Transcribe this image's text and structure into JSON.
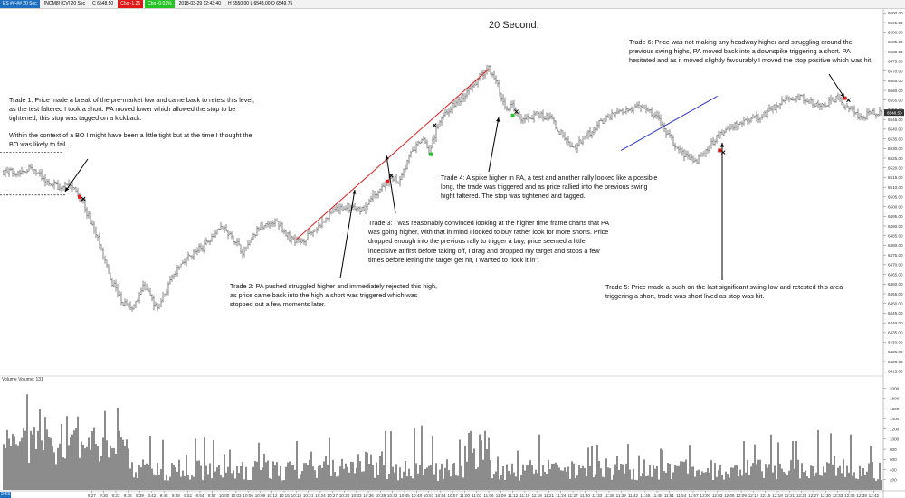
{
  "topbar": {
    "instrument": "ES ##-## 20 Sec",
    "bar_type": "[NQM8] [CV] 20 Sec",
    "price": "C 6548.50",
    "stats": "H 6550.00  L 6548.00  O 6549.75",
    "chg": "Chg -1.25",
    "chg_pct": "Chg -0.02%",
    "datetime": "2018-03-29 12:43:40"
  },
  "title": "20 Second.",
  "volume_label": "Volume  Volume: 131",
  "time_badge": "3-29",
  "annotations": {
    "trade1": {
      "p1": "Trade 1:  Price made a break of the pre-market low and came back to retest this level, as the test faltered I took a short.  PA moved lower which allowed the stop to be tightened, this stop was tagged on a kickback.",
      "p2": "Within the context of a BO I might have been a little tight but at the time I thought the BO was likely to fail."
    },
    "trade2": "Trade 2:  PA pushed struggled higher and immediately rejected this high, as price came back into the high a short was triggered which was stopped out a few moments later.",
    "trade3": "Trade 3:  I was reasonably convinced looking at the higher time frame charts that PA was going higher, with that in mind I looked to buy rather look for more shorts. Price dropped enough into the previous rally to trigger a buy, price seemed a little indecisive at first before taking off, I drag and dropped my target and stops a few times before letting the target get hit, I wanted to \"lock it in\".",
    "trade4": "Trade 4:  A spike higher in PA, a test and another rally looked like a possible long, the trade was triggered and as price rallied into the previous swing hight faltered.  The stop was tightened and tagged.",
    "trade5": "Trade 5:  Price made a push on the last significant swing low and retested this area triggering a short, trade was short lived as stop was hit.",
    "trade6": "Trade 6:  Price was not making any headway higher and struggling around the previous swing highs, PA moved back into a downspike triggering a short.  PA hesitated and as it moved slightly favourably I moved the stop positive which was hit."
  },
  "chart_data": {
    "type": "bar",
    "subtype": "ohlc",
    "price_axis": {
      "ticks": [
        "6600.00",
        "6595.00",
        "6590.00",
        "6585.00",
        "6580.00",
        "6575.00",
        "6570.00",
        "6565.00",
        "6560.00",
        "6555.00",
        "6550.00",
        "6545.00",
        "6540.00",
        "6535.00",
        "6530.00",
        "6525.00",
        "6520.00",
        "6515.00",
        "6510.00",
        "6505.00",
        "6500.00",
        "6495.00",
        "6490.00",
        "6485.00",
        "6480.00",
        "6475.00",
        "6470.00",
        "6465.00",
        "6460.00",
        "6455.00",
        "6450.00",
        "6445.00",
        "6440.00",
        "6435.00",
        "6430.00",
        "6425.00",
        "6420.00",
        "6415.00"
      ],
      "range": [
        6413,
        6602
      ],
      "last_price": "6548.50"
    },
    "volume_axis": {
      "ticks": [
        "2000",
        "1800",
        "1600",
        "1400",
        "1200",
        "1000",
        "800",
        "600",
        "400",
        "200"
      ],
      "range": [
        0,
        2100
      ]
    },
    "time_ticks": [
      "9:27",
      "9:30",
      "9:33",
      "9:36",
      "9:39",
      "9:42",
      "9:45",
      "9:48",
      "9:51",
      "9:54",
      "9:57",
      "10:00",
      "10:03",
      "10:06",
      "10:09",
      "10:12",
      "10:15",
      "10:18",
      "10:21",
      "10:24",
      "10:27",
      "10:30",
      "10:33",
      "10:36",
      "10:39",
      "10:42",
      "10:45",
      "10:48",
      "10:51",
      "10:54",
      "10:57",
      "11:00",
      "11:03",
      "11:06",
      "11:09",
      "11:12",
      "11:15",
      "11:18",
      "11:21",
      "11:24",
      "11:27",
      "11:30",
      "11:33",
      "11:36",
      "11:39",
      "11:42",
      "11:45",
      "11:48",
      "11:51",
      "11:54",
      "11:57",
      "12:00",
      "12:03",
      "12:06",
      "12:09",
      "12:12",
      "12:15",
      "12:18",
      "12:21",
      "12:24",
      "12:27",
      "12:30",
      "12:33",
      "12:36",
      "12:39",
      "12:42"
    ],
    "price_path": [
      [
        9.15,
        6518
      ],
      [
        9.2,
        6520
      ],
      [
        9.27,
        6512
      ],
      [
        9.33,
        6510
      ],
      [
        9.35,
        6513
      ],
      [
        9.42,
        6500
      ],
      [
        9.48,
        6482
      ],
      [
        9.53,
        6462
      ],
      [
        9.58,
        6450
      ],
      [
        9.62,
        6448
      ],
      [
        9.67,
        6460
      ],
      [
        9.72,
        6447
      ],
      [
        9.78,
        6462
      ],
      [
        9.83,
        6472
      ],
      [
        9.92,
        6480
      ],
      [
        9.98,
        6490
      ],
      [
        10.05,
        6482
      ],
      [
        10.08,
        6476
      ],
      [
        10.15,
        6490
      ],
      [
        10.22,
        6492
      ],
      [
        10.27,
        6484
      ],
      [
        10.32,
        6482
      ],
      [
        10.38,
        6488
      ],
      [
        10.45,
        6497
      ],
      [
        10.5,
        6500
      ],
      [
        10.57,
        6498
      ],
      [
        10.62,
        6506
      ],
      [
        10.7,
        6515
      ],
      [
        10.72,
        6512
      ],
      [
        10.78,
        6528
      ],
      [
        10.83,
        6536
      ],
      [
        10.85,
        6528
      ],
      [
        10.9,
        6546
      ],
      [
        10.97,
        6554
      ],
      [
        11.02,
        6560
      ],
      [
        11.07,
        6568
      ],
      [
        11.1,
        6571
      ],
      [
        11.13,
        6565
      ],
      [
        11.17,
        6550
      ],
      [
        11.2,
        6553
      ],
      [
        11.23,
        6544
      ],
      [
        11.3,
        6548
      ],
      [
        11.35,
        6546
      ],
      [
        11.4,
        6538
      ],
      [
        11.45,
        6530
      ],
      [
        11.5,
        6536
      ],
      [
        11.57,
        6544
      ],
      [
        11.62,
        6548
      ],
      [
        11.67,
        6550
      ],
      [
        11.73,
        6552
      ],
      [
        11.8,
        6546
      ],
      [
        11.85,
        6536
      ],
      [
        11.88,
        6530
      ],
      [
        11.92,
        6526
      ],
      [
        11.97,
        6524
      ],
      [
        12.02,
        6532
      ],
      [
        12.07,
        6538
      ],
      [
        12.12,
        6542
      ],
      [
        12.18,
        6544
      ],
      [
        12.25,
        6548
      ],
      [
        12.32,
        6554
      ],
      [
        12.38,
        6557
      ],
      [
        12.43,
        6555
      ],
      [
        12.48,
        6552
      ],
      [
        12.55,
        6556
      ],
      [
        12.6,
        6550
      ],
      [
        12.65,
        6546
      ],
      [
        12.7,
        6549
      ]
    ],
    "annotations_lines": [
      {
        "color": "#e02020",
        "from": [
          10.3,
          6483
        ],
        "to": [
          11.1,
          6571
        ]
      },
      {
        "color": "#2a35c8",
        "from": [
          11.65,
          6529
        ],
        "to": [
          12.05,
          6557
        ]
      }
    ],
    "reference_lines": [
      {
        "style": "dashed",
        "level": 6506
      },
      {
        "style": "dashed",
        "level": 6528
      }
    ],
    "entries": [
      {
        "trade": 1,
        "type": "short",
        "entry": 6505,
        "exit": 6504
      },
      {
        "trade": 2,
        "type": "short",
        "entry": 6513,
        "exit": 6516
      },
      {
        "trade": 3,
        "type": "long",
        "entry": 6527,
        "exit": 6542
      },
      {
        "trade": 4,
        "type": "long",
        "entry": 6547,
        "exit": 6549
      },
      {
        "trade": 5,
        "type": "short",
        "entry": 6529,
        "exit": 6528
      },
      {
        "trade": 6,
        "type": "short",
        "entry": 6556,
        "exit": 6555
      }
    ],
    "colors": {
      "bars": "#222222",
      "volume": "#404040",
      "long_line": "#e02020",
      "short_line": "#2a35c8",
      "entry_short": "#e01a1a",
      "entry_long": "#25c325",
      "last_price_tag": "#333333"
    }
  }
}
